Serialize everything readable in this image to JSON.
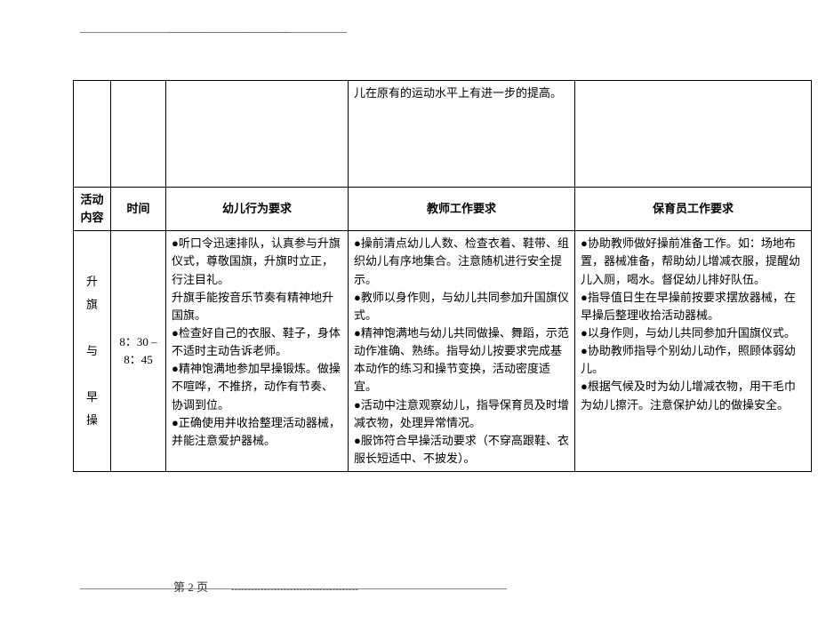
{
  "page_number_label": "第 2 页",
  "top_dashes": "-------------------------------------",
  "footer_dashes": "---------------------------------------",
  "fragment_row": {
    "col4_text": "儿在原有的运动水平上有进一步的提高。"
  },
  "header": {
    "activity": "活动内容",
    "time": "时间",
    "child": "幼儿行为要求",
    "teacher": "教师工作要求",
    "caregiver": "保育员工作要求"
  },
  "row1": {
    "activity_lines": [
      "升",
      "旗",
      "",
      "与",
      "",
      "早",
      "操"
    ],
    "time": "8：30 – 8：45",
    "child": "●听口令迅速排队，认真参与升旗仪式，尊敬国旗，升旗时立正，行注目礼。\n升旗手能按音乐节奏有精神地升国旗。\n●检查好自己的衣服、鞋子，身体不适时主动告诉老师。\n●精神饱满地参加早操锻炼。做操不喧哗，不推挤，动作有节奏、协调到位。\n●正确使用并收拾整理活动器械，并能注意爱护器械。",
    "teacher": "●操前清点幼儿人数、检查衣着、鞋带、组织幼儿有序地集合。注意随机进行安全提示。\n●教师以身作则，与幼儿共同参加升国旗仪式。\n●精神饱满地与幼儿共同做操、舞蹈，示范动作准确、熟练。指导幼儿按要求完成基本动作的练习和操节变换，活动密度适宜。\n●活动中注意观察幼儿，指导保育员及时增减衣物，处理异常情况。\n●服饰符合早操活动要求（不穿高跟鞋、衣服长短适中、不披发）。",
    "caregiver": "●协助教师做好操前准备工作。如：场地布置，器械准备，帮助幼儿增减衣服，提醒幼儿入厕，喝水。督促幼儿排好队伍。\n●指导值日生在早操前按要求摆放器械，在早操后整理收拾活动器械。\n●以身作则，与幼儿共同参加升国旗仪式。\n●协助教师指导个别幼儿动作，照顾体弱幼儿。\n●根据气候及时为幼儿增减衣物，用干毛巾为幼儿擦汗。注意保护幼儿的做操安全。"
  },
  "colors": {
    "border": "#000000",
    "text": "#000000",
    "line": "#888888",
    "background": "#ffffff"
  },
  "font": {
    "family": "SimSun",
    "size_pt": 10
  }
}
